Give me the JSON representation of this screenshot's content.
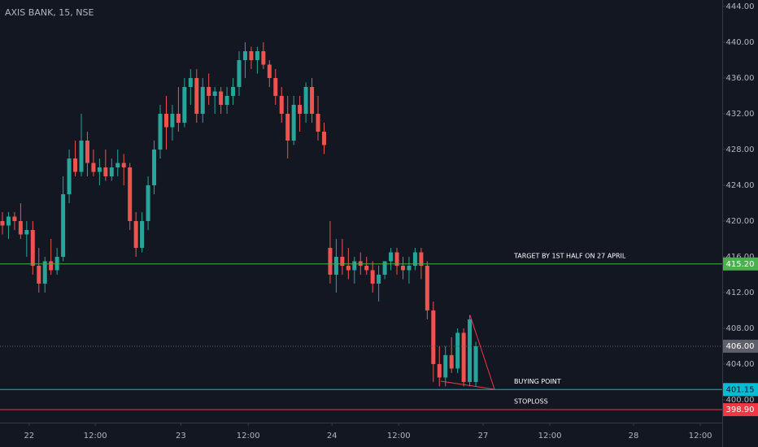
{
  "chart_data": {
    "type": "candlestick",
    "title": "AXIS BANK, 15, NSE",
    "up_color": "#26a69a",
    "down_color": "#ef5350",
    "x": [
      0,
      1,
      2,
      3,
      4,
      5,
      6,
      7,
      8,
      9,
      10,
      11,
      12,
      13,
      14,
      15,
      16,
      17,
      18,
      19,
      20,
      21,
      22,
      23,
      24,
      25,
      26,
      27,
      28,
      29,
      30,
      31,
      32,
      33,
      34,
      35,
      36,
      37,
      38,
      39,
      40,
      41,
      42,
      43,
      44,
      45,
      46,
      47,
      48,
      49,
      50,
      51,
      52,
      53,
      54,
      55,
      56,
      57,
      58,
      59,
      60,
      61,
      62,
      63,
      64,
      65,
      66,
      67,
      68,
      69,
      70,
      71,
      72,
      73,
      74,
      75,
      76,
      77,
      78
    ],
    "open": [
      420,
      419.5,
      420.5,
      420,
      418.5,
      419,
      415,
      413,
      415.5,
      414.5,
      416,
      423,
      427,
      425.5,
      429,
      426.5,
      425.5,
      426,
      425,
      426,
      426.5,
      426,
      420,
      417,
      420,
      424,
      428,
      432,
      430.5,
      432,
      431,
      435,
      436,
      432,
      435,
      434,
      434.5,
      433,
      434,
      435,
      438,
      439,
      438,
      439,
      437.5,
      436,
      434,
      432,
      429,
      433,
      432,
      435,
      432,
      430,
      417,
      414,
      416,
      415,
      414.5,
      415.5,
      415,
      414.5,
      413,
      414,
      415.5,
      416.5,
      415,
      414.5,
      415,
      416.5,
      415,
      410,
      404,
      402.5,
      405,
      403.5,
      407.5,
      402,
      402
    ],
    "high": [
      421,
      421,
      421,
      422,
      420,
      420,
      417,
      416,
      418,
      417,
      425,
      428,
      429,
      432,
      430,
      428,
      427,
      428,
      427,
      428,
      427.5,
      426.5,
      421,
      421,
      425,
      429,
      433,
      434,
      433,
      435,
      436,
      437,
      437,
      436,
      436.5,
      435,
      435,
      435,
      436,
      439,
      440,
      439.5,
      439.5,
      440,
      438,
      437,
      435,
      434,
      434,
      434,
      435.5,
      436,
      434,
      431,
      420,
      418,
      418,
      417,
      416,
      416.5,
      416,
      415.5,
      415,
      415.5,
      417,
      417,
      416,
      416,
      417,
      417,
      415.5,
      411,
      406,
      406,
      407,
      408,
      408,
      409.5,
      406.5
    ],
    "low": [
      418.5,
      418,
      419,
      418,
      416,
      414,
      412,
      412,
      414,
      414,
      415.5,
      422,
      425,
      425,
      425,
      425,
      424,
      424.5,
      424.5,
      425,
      424,
      419,
      416,
      416.5,
      419,
      423,
      427,
      428,
      429,
      430,
      430.5,
      433,
      431,
      431,
      433,
      432,
      432,
      432,
      433,
      434,
      436,
      437,
      436.5,
      437,
      435,
      433,
      431,
      427,
      428.5,
      430,
      431,
      431,
      429,
      427.5,
      413,
      412,
      414,
      413.5,
      413,
      414,
      414,
      412,
      411,
      413.5,
      414.5,
      414,
      413.5,
      413,
      414.5,
      413.5,
      409,
      402,
      401.5,
      401.5,
      403,
      403,
      401.5,
      401.5,
      401.5
    ],
    "close": [
      419.5,
      420.5,
      420,
      418.5,
      419,
      415,
      413,
      415.5,
      414.5,
      416,
      423,
      427,
      425.5,
      429,
      426.5,
      425.5,
      426,
      425,
      426,
      426.5,
      426,
      420,
      417,
      420,
      424,
      428,
      432,
      430.5,
      432,
      431,
      435,
      436,
      432,
      435,
      434,
      434.5,
      433,
      434,
      435,
      438,
      439,
      438,
      439,
      437.5,
      436,
      434,
      432,
      429,
      433,
      432,
      435,
      432,
      430,
      428.5,
      414,
      416,
      415,
      414.5,
      415.5,
      415,
      414.5,
      413,
      414,
      415.5,
      416.5,
      415,
      414.5,
      415,
      416.5,
      415,
      410,
      404,
      402.5,
      405,
      403.5,
      407.5,
      402,
      409,
      406
    ],
    "xlim": [
      -0.4,
      118.6
    ],
    "xticks": [
      {
        "value": 4.4,
        "label": "22"
      },
      {
        "value": 15.3,
        "label": "12:00"
      },
      {
        "value": 29.4,
        "label": "23"
      },
      {
        "value": 40.5,
        "label": "12:00"
      },
      {
        "value": 54.3,
        "label": "24"
      },
      {
        "value": 65.3,
        "label": "12:00"
      },
      {
        "value": 79.2,
        "label": "27"
      },
      {
        "value": 90.2,
        "label": "12:00"
      },
      {
        "value": 104,
        "label": "28"
      },
      {
        "value": 115,
        "label": "12:00"
      }
    ],
    "ylim": [
      397.45,
      444.73
    ],
    "yticks": [
      {
        "value": 400,
        "label": "400.00"
      },
      {
        "value": 404,
        "label": "404.00"
      },
      {
        "value": 408,
        "label": "408.00"
      },
      {
        "value": 412,
        "label": "412.00"
      },
      {
        "value": 416,
        "label": "416.00"
      },
      {
        "value": 420,
        "label": "420.00"
      },
      {
        "value": 424,
        "label": "424.00"
      },
      {
        "value": 428,
        "label": "428.00"
      },
      {
        "value": 432,
        "label": "432.00"
      },
      {
        "value": 436,
        "label": "436.00"
      },
      {
        "value": 440,
        "label": "440.00"
      },
      {
        "value": 444,
        "label": "444.00"
      }
    ],
    "hlines": [
      {
        "value": 415.2,
        "label": "415.20",
        "color": "#4caf50",
        "text": "TARGET BY 1ST HALF ON 27 APRIL"
      },
      {
        "value": 406,
        "label": "406.00",
        "color": "#5d606b"
      },
      {
        "value": 401.15,
        "label": "401.15",
        "color": "#00bcd4",
        "text": "BUYING POINT"
      },
      {
        "value": 398.9,
        "label": "398.90",
        "color": "#f23645",
        "text": "STOPLOSS"
      }
    ]
  }
}
